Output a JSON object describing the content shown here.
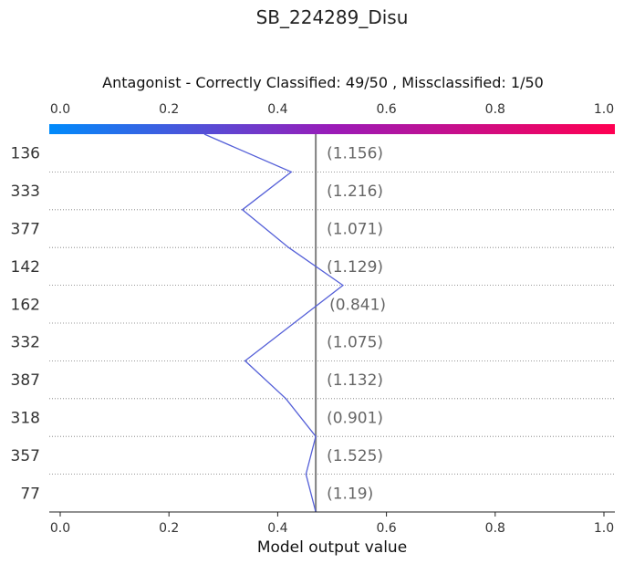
{
  "chart_data": {
    "type": "line",
    "title": "SB_224289_Disu",
    "subtitle": "Antagonist - Correctly Classified: 49/50 , Missclassified: 1/50",
    "xlabel": "Model output value",
    "xlim": [
      0.0,
      1.0
    ],
    "x_ticks": [
      "0.0",
      "0.2",
      "0.4",
      "0.6",
      "0.8",
      "1.0"
    ],
    "x_tick_values": [
      0.0,
      0.2,
      0.4,
      0.6,
      0.8,
      1.0
    ],
    "base_value": 0.47,
    "rows": [
      {
        "feature": "136",
        "annotation": "(1.156)"
      },
      {
        "feature": "333",
        "annotation": "(1.216)"
      },
      {
        "feature": "377",
        "annotation": "(1.071)"
      },
      {
        "feature": "142",
        "annotation": "(1.129)"
      },
      {
        "feature": "162",
        "annotation": "(0.841)"
      },
      {
        "feature": "332",
        "annotation": "(1.075)"
      },
      {
        "feature": "387",
        "annotation": "(1.132)"
      },
      {
        "feature": "318",
        "annotation": "(0.901)"
      },
      {
        "feature": "357",
        "annotation": "(1.525)"
      },
      {
        "feature": "77",
        "annotation": "(1.19)"
      }
    ],
    "decision_path": [
      0.265,
      0.425,
      0.335,
      0.42,
      0.52,
      0.43,
      0.34,
      0.415,
      0.47,
      0.452,
      0.47
    ],
    "grid": "dotted",
    "line_color": "#5560d8",
    "base_line_color": "#808080",
    "colorbar": [
      "#008bfb",
      "#ff0052"
    ]
  }
}
